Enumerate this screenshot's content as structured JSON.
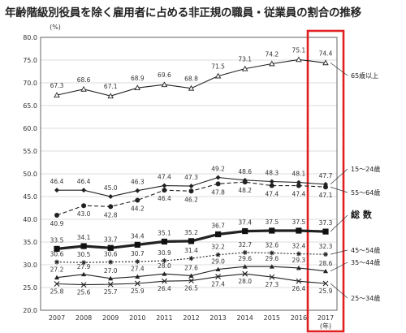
{
  "chart_data": {
    "type": "line",
    "title": "年齢階級別役員を除く雇用者に占める非正規の職員・従業員の割合の推移",
    "ylabel_unit": "(%)",
    "xlabel_unit": "(年)",
    "x": [
      "2007",
      "2008",
      "2009",
      "2010",
      "2011",
      "2012",
      "2013",
      "2014",
      "2015",
      "2016",
      "2017"
    ],
    "ylim": [
      20.0,
      80.0
    ],
    "yticks": [
      "20.0",
      "25.0",
      "30.0",
      "35.0",
      "40.0",
      "45.0",
      "50.0",
      "55.0",
      "60.0",
      "65.0",
      "70.0",
      "75.0",
      "80.0"
    ],
    "grid": "horizontal",
    "highlight": {
      "category": "2017",
      "color": "#e02020"
    },
    "series": [
      {
        "name": "65歳以上",
        "marker": "triangle-open",
        "style": "solid",
        "bold": false,
        "values": [
          67.3,
          68.6,
          67.1,
          68.9,
          69.6,
          68.8,
          71.5,
          73.1,
          74.2,
          75.1,
          74.4
        ],
        "labels": [
          "67.3",
          "68.6",
          "67.1",
          "68.9",
          "69.6",
          "68.8",
          "71.5",
          "73.1",
          "74.2",
          "75.1",
          "74.4"
        ]
      },
      {
        "name": "15～24歳",
        "marker": "diamond",
        "style": "solid",
        "bold": false,
        "values": [
          46.4,
          46.4,
          45.0,
          46.3,
          47.4,
          47.3,
          49.2,
          48.6,
          48.3,
          48.1,
          47.7
        ],
        "labels": [
          "46.4",
          "46.4",
          "45.0",
          "46.3",
          "47.4",
          "47.3",
          "49.2",
          "48.6",
          "48.3",
          "48.1",
          "47.7"
        ]
      },
      {
        "name": "55～64歳",
        "marker": "circle",
        "style": "dashed",
        "bold": false,
        "values": [
          40.9,
          43.0,
          42.8,
          44.2,
          46.4,
          46.2,
          47.8,
          48.2,
          47.4,
          47.4,
          47.1
        ],
        "labels": [
          "40.9",
          "43.0",
          "42.8",
          "44.2",
          "46.4",
          "46.2",
          "47.8",
          "48.2",
          "47.4",
          "47.4",
          "47.1"
        ]
      },
      {
        "name": "総 数",
        "marker": "square",
        "style": "solid",
        "bold": true,
        "values": [
          33.5,
          34.1,
          33.7,
          34.4,
          35.1,
          35.2,
          36.7,
          37.4,
          37.5,
          37.5,
          37.3
        ],
        "labels": [
          "33.5",
          "34.1",
          "33.7",
          "34.4",
          "35.1",
          "35.2",
          "36.7",
          "37.4",
          "37.5",
          "37.5",
          "37.3"
        ]
      },
      {
        "name": "45～54歳",
        "marker": "star",
        "style": "dotted",
        "bold": false,
        "values": [
          30.6,
          30.5,
          30.6,
          30.7,
          30.9,
          31.4,
          32.2,
          32.7,
          32.6,
          32.4,
          32.3
        ],
        "labels": [
          "30.6",
          "30.5",
          "30.6",
          "30.7",
          "30.9",
          "31.4",
          "32.2",
          "32.7",
          "32.6",
          "32.4",
          "32.3"
        ]
      },
      {
        "name": "35～44歳",
        "marker": "triangle",
        "style": "solid",
        "bold": false,
        "values": [
          27.2,
          27.9,
          27.0,
          27.4,
          28.0,
          27.6,
          29.0,
          29.6,
          29.6,
          29.3,
          28.6
        ],
        "labels": [
          "27.2",
          "27.9",
          "27.0",
          "27.4",
          "28.0",
          "27.6",
          "29.0",
          "29.6",
          "29.6",
          "29.3",
          "28.6"
        ]
      },
      {
        "name": "25～34歳",
        "marker": "cross",
        "style": "solid",
        "bold": false,
        "values": [
          25.8,
          25.6,
          25.7,
          25.9,
          26.4,
          26.5,
          27.4,
          28.0,
          27.3,
          26.4,
          25.9
        ],
        "labels": [
          "25.8",
          "25.6",
          "25.7",
          "25.9",
          "26.4",
          "26.5",
          "27.4",
          "28.0",
          "27.3",
          "26.4",
          "25.9"
        ]
      }
    ]
  }
}
